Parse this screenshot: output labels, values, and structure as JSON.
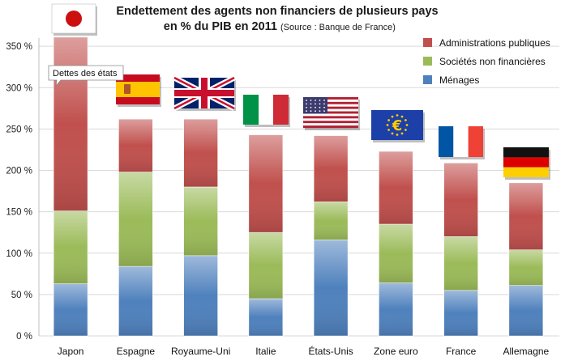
{
  "chart_data": {
    "type": "bar",
    "stacked": true,
    "title": "Endettement des agents non financiers de plusieurs pays",
    "subtitle": "en % du PIB en 2011",
    "source": "(Source : Banque de France)",
    "categories": [
      "Japon",
      "Espagne",
      "Royaume-Uni",
      "Italie",
      "États-Unis",
      "Zone euro",
      "France",
      "Allemagne"
    ],
    "series": [
      {
        "name": "Ménages",
        "color": "#4f81bd",
        "values": [
          63,
          84,
          97,
          45,
          116,
          64,
          55,
          61
        ]
      },
      {
        "name": "Sociétés non financières",
        "color": "#9bbb59",
        "values": [
          88,
          114,
          83,
          80,
          46,
          71,
          65,
          43
        ]
      },
      {
        "name": "Administrations publiques",
        "color": "#c0504d",
        "values": [
          210,
          64,
          82,
          118,
          80,
          88,
          89,
          81
        ]
      }
    ],
    "legend_order": [
      "Administrations publiques",
      "Sociétés non financières",
      "Ménages"
    ],
    "yticks": [
      "0 %",
      "50 %",
      "100 %",
      "150 %",
      "200 %",
      "250 %",
      "300 %",
      "350 %"
    ],
    "ylim": [
      0,
      360
    ],
    "grid": true,
    "legend_position": "top-right",
    "annotation": "Dettes des états",
    "flags": [
      "japan-flag",
      "spain-flag",
      "uk-flag",
      "italy-flag",
      "usa-flag",
      "eu-flag",
      "france-flag",
      "germany-flag"
    ]
  }
}
